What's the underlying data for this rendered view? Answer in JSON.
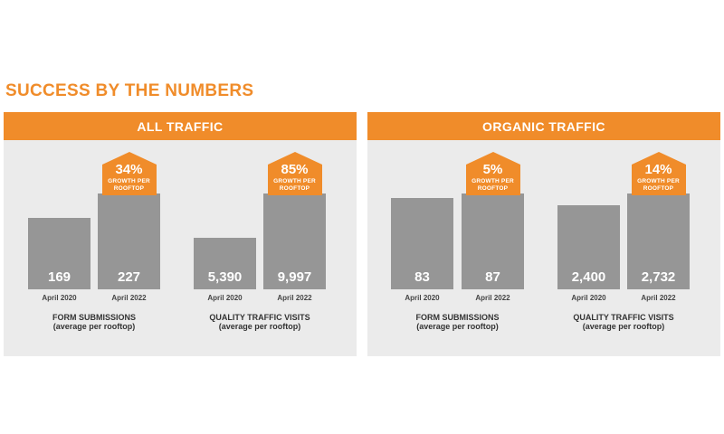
{
  "title": "SUCCESS BY THE NUMBERS",
  "colors": {
    "accent": "#f08c2a",
    "bar": "#969696",
    "panel": "#ebebeb"
  },
  "growth_subtitle": "GROWTH PER ROOFTOP",
  "chart_data": [
    {
      "type": "bar",
      "title": "ALL TRAFFIC",
      "groups": [
        {
          "name": "FORM SUBMISSIONS",
          "subtitle": "(average per rooftop)",
          "categories": [
            "April 2020",
            "April 2022"
          ],
          "values": [
            169,
            227
          ],
          "value_labels": [
            "169",
            "227"
          ],
          "growth": "34%"
        },
        {
          "name": "QUALITY TRAFFIC VISITS",
          "subtitle": "(average per rooftop)",
          "categories": [
            "April 2020",
            "April 2022"
          ],
          "values": [
            5390,
            9997
          ],
          "value_labels": [
            "5,390",
            "9,997"
          ],
          "growth": "85%"
        }
      ]
    },
    {
      "type": "bar",
      "title": "ORGANIC TRAFFIC",
      "groups": [
        {
          "name": "FORM SUBMISSIONS",
          "subtitle": "(average per rooftop)",
          "categories": [
            "April 2020",
            "April 2022"
          ],
          "values": [
            83,
            87
          ],
          "value_labels": [
            "83",
            "87"
          ],
          "growth": "5%"
        },
        {
          "name": "QUALITY TRAFFIC VISITS",
          "subtitle": "(average per rooftop)",
          "categories": [
            "April 2020",
            "April 2022"
          ],
          "values": [
            2400,
            2732
          ],
          "value_labels": [
            "2,400",
            "2,732"
          ],
          "growth": "14%"
        }
      ]
    }
  ]
}
